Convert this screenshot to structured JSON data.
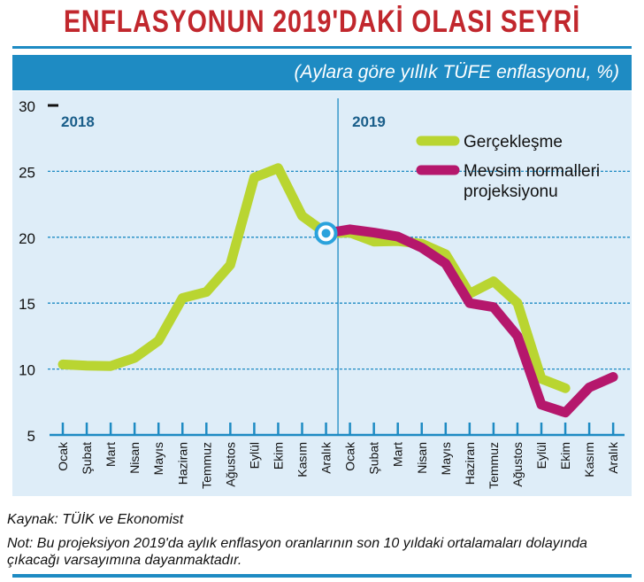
{
  "header": {
    "title": "ENFLASYONUN 2019'DAKİ OLASI SEYRİ",
    "subtitle": "(Aylara göre yıllık TÜFE enflasyonu, %)"
  },
  "footer": {
    "source": "Kaynak: TÜİK ve Ekonomist",
    "note": "Not: Bu projeksiyon 2019'da aylık enflasyon oranlarının son 10 yıldaki ortalamaları dolayında çıkacağı varsayımına dayanmaktadır."
  },
  "colors": {
    "accent": "#1e8bc3",
    "panel": "#deedf8",
    "title": "#c1272d",
    "actual": "#b9d531",
    "projection": "#b5176c",
    "marker": "#2aa2dc"
  },
  "chart_data": {
    "type": "line",
    "ylim": [
      5,
      30
    ],
    "yticks": [
      5,
      10,
      15,
      20,
      25,
      30
    ],
    "grid": true,
    "legend_position": "top-right",
    "year_labels": [
      "2018",
      "2019"
    ],
    "categories": [
      "Ocak",
      "Şubat",
      "Mart",
      "Nisan",
      "Mayıs",
      "Haziran",
      "Temmuz",
      "Ağustos",
      "Eylül",
      "Ekim",
      "Kasım",
      "Aralık",
      "Ocak",
      "Şubat",
      "Mart",
      "Nisan",
      "Mayıs",
      "Haziran",
      "Temmuz",
      "Ağustos",
      "Eylül",
      "Ekim",
      "Kasım",
      "Aralık"
    ],
    "series": [
      {
        "name": "Gerçekleşme",
        "color": "#b9d531",
        "values": [
          10.35,
          10.26,
          10.23,
          10.85,
          12.15,
          15.39,
          15.85,
          17.9,
          24.52,
          25.24,
          21.62,
          20.3,
          20.35,
          19.67,
          19.71,
          19.5,
          18.71,
          15.72,
          16.65,
          15.01,
          9.26,
          8.55,
          null,
          null
        ]
      },
      {
        "name": "Mevsim normalleri projeksiyonu",
        "color": "#b5176c",
        "values": [
          null,
          null,
          null,
          null,
          null,
          null,
          null,
          null,
          null,
          null,
          null,
          20.3,
          20.6,
          20.35,
          20.05,
          19.2,
          18.0,
          15.0,
          14.7,
          12.5,
          7.3,
          6.7,
          8.6,
          9.4
        ]
      }
    ],
    "highlight_point": {
      "index": 11,
      "value": 20.3
    }
  }
}
